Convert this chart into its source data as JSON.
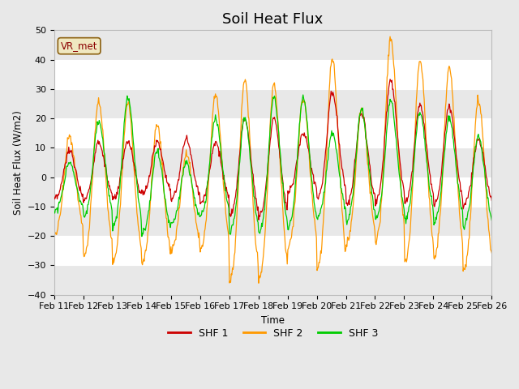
{
  "title": "Soil Heat Flux",
  "ylabel": "Soil Heat Flux (W/m2)",
  "xlabel": "Time",
  "ylim": [
    -40,
    50
  ],
  "yticks": [
    -40,
    -30,
    -20,
    -10,
    0,
    10,
    20,
    30,
    40,
    50
  ],
  "line_colors": {
    "SHF 1": "#cc0000",
    "SHF 2": "#ff9900",
    "SHF 3": "#00cc00"
  },
  "line_labels": [
    "SHF 1",
    "SHF 2",
    "SHF 3"
  ],
  "bg_color": "#e8e8e8",
  "white_band_color": "#f0f0f0",
  "annotation_text": "VR_met",
  "x_tick_labels": [
    "Feb 11",
    "Feb 12",
    "Feb 13",
    "Feb 14",
    "Feb 15",
    "Feb 16",
    "Feb 17",
    "Feb 18",
    "Feb 19",
    "Feb 20",
    "Feb 21",
    "Feb 22",
    "Feb 23",
    "Feb 24",
    "Feb 25",
    "Feb 26"
  ],
  "title_fontsize": 13,
  "legend_fontsize": 9,
  "tick_fontsize": 8
}
